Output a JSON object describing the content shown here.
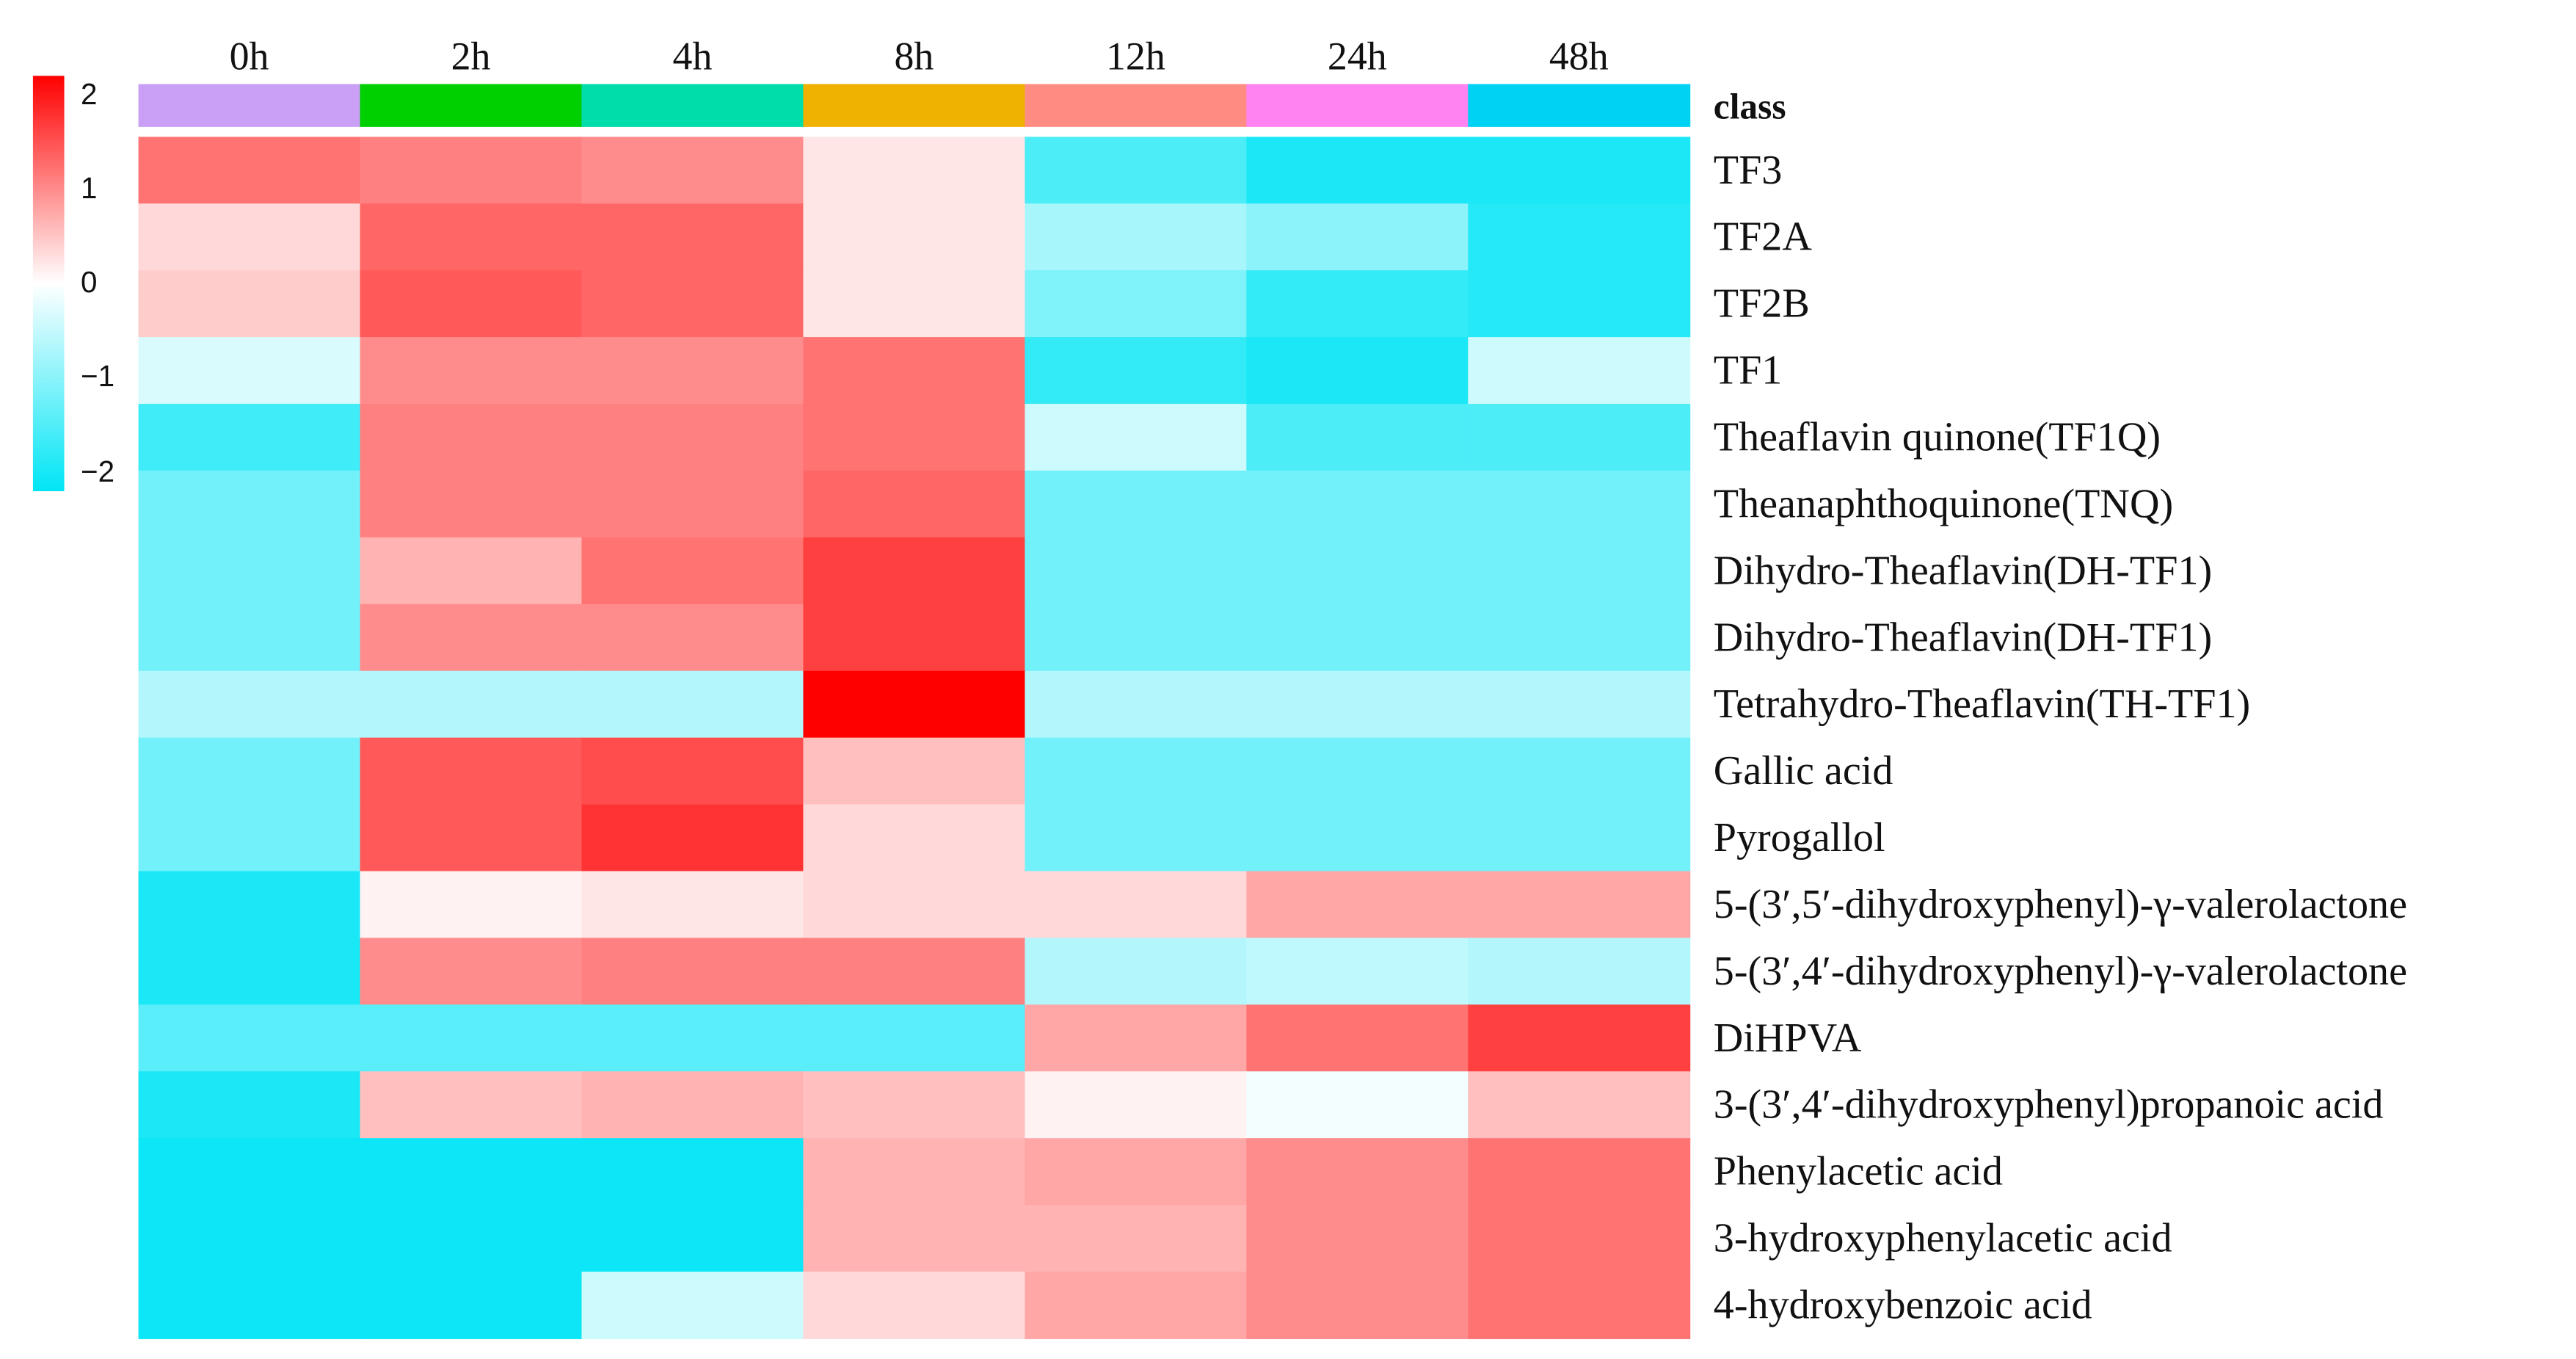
{
  "chart_data": {
    "type": "heatmap",
    "columns": [
      "0h",
      "2h",
      "4h",
      "8h",
      "12h",
      "24h",
      "48h"
    ],
    "class_label": "class",
    "class_colors": [
      "#c9a0f6",
      "#00d000",
      "#00dcaa",
      "#f0b200",
      "#ff8c82",
      "#ff84f2",
      "#00d2f4"
    ],
    "rows": [
      "TF3",
      "TF2A",
      "TF2B",
      "TF1",
      "Theaflavin  quinone(TF1Q)",
      "Theanaphthoquinone(TNQ)",
      "Dihydro-Theaflavin(DH-TF1)",
      "Dihydro-Theaflavin(DH-TF1)",
      "Tetrahydro-Theaflavin(TH-TF1)",
      "Gallic acid",
      "Pyrogallol",
      "5-(3′,5′-dihydroxyphenyl)-γ-valerolactone",
      "5-(3′,4′-dihydroxyphenyl)-γ-valerolactone",
      "DiHPVA",
      "3-(3′,4′-dihydroxyphenyl)propanoic acid",
      "Phenylacetic acid",
      "3-hydroxyphenylacetic acid",
      "4-hydroxybenzoic acid"
    ],
    "values": [
      [
        1.1,
        1.0,
        0.9,
        0.2,
        -1.4,
        -1.8,
        -1.8
      ],
      [
        0.3,
        1.2,
        1.2,
        0.2,
        -0.7,
        -0.9,
        -1.7
      ],
      [
        0.4,
        1.3,
        1.2,
        0.2,
        -1.0,
        -1.6,
        -1.7
      ],
      [
        -0.3,
        0.9,
        0.9,
        1.1,
        -1.6,
        -1.8,
        -0.4
      ],
      [
        -1.5,
        1.0,
        1.0,
        1.1,
        -0.4,
        -1.4,
        -1.4
      ],
      [
        -1.1,
        1.0,
        1.0,
        1.2,
        -1.1,
        -1.1,
        -1.1
      ],
      [
        -1.1,
        0.6,
        1.1,
        1.5,
        -1.1,
        -1.1,
        -1.1
      ],
      [
        -1.1,
        0.9,
        0.9,
        1.5,
        -1.1,
        -1.1,
        -1.1
      ],
      [
        -0.6,
        -0.6,
        -0.6,
        2.0,
        -0.6,
        -0.6,
        -0.6
      ],
      [
        -1.1,
        1.3,
        1.4,
        0.5,
        -1.1,
        -1.1,
        -1.1
      ],
      [
        -1.1,
        1.3,
        1.6,
        0.3,
        -1.1,
        -1.1,
        -1.1
      ],
      [
        -1.8,
        0.1,
        0.2,
        0.3,
        0.3,
        0.7,
        0.7
      ],
      [
        -1.8,
        0.9,
        1.0,
        1.0,
        -0.6,
        -0.5,
        -0.6
      ],
      [
        -1.3,
        -1.3,
        -1.3,
        -1.3,
        0.7,
        1.1,
        1.5
      ],
      [
        -1.8,
        0.5,
        0.6,
        0.5,
        0.1,
        -0.1,
        0.5
      ],
      [
        -1.9,
        -1.9,
        -1.9,
        0.6,
        0.7,
        0.9,
        1.1
      ],
      [
        -1.9,
        -1.9,
        -1.9,
        0.6,
        0.6,
        0.9,
        1.1
      ],
      [
        -1.9,
        -1.9,
        -0.4,
        0.3,
        0.7,
        0.9,
        1.1
      ]
    ],
    "scale": {
      "min": -2,
      "max": 2,
      "ticks": [
        2,
        1,
        0,
        -1,
        -2
      ],
      "tick_labels": [
        "2",
        "1",
        "0",
        "−1",
        "−2"
      ],
      "low_color": "#00e5f5",
      "mid_color": "#ffffff",
      "high_color": "#ff0000"
    }
  }
}
